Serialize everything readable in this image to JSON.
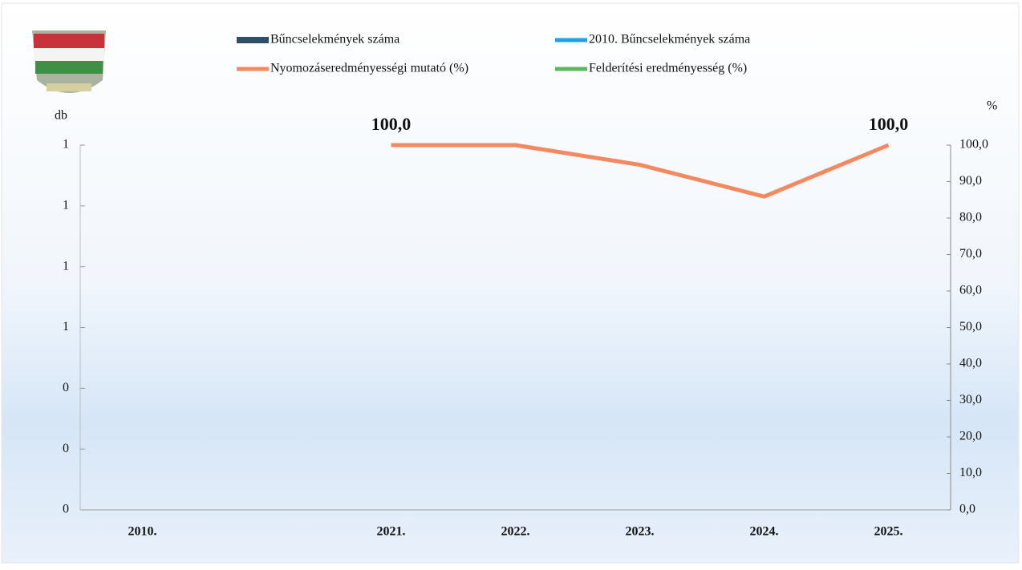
{
  "chart_data": {
    "type": "bar+line",
    "y_label": "db",
    "y2_label": "%",
    "categories": [
      "2010.",
      null,
      "2021.",
      "2022.",
      "2023.",
      "2024.",
      "2025."
    ],
    "ylim": [
      0,
      1.2
    ],
    "yticks": [
      0,
      {
        "value": 0.2,
        "label": "0"
      },
      {
        "value": 0.4,
        "label": "0"
      },
      {
        "value": 0.6,
        "label": "1"
      },
      {
        "value": 0.8,
        "label": "1"
      },
      1,
      {
        "value": 1.2,
        "label": "1"
      }
    ],
    "y2lim": [
      0,
      100
    ],
    "y2ticks": [
      {
        "value": 0,
        "label": "0,0"
      },
      {
        "value": 10,
        "label": "10,0"
      },
      {
        "value": 20,
        "label": "20,0"
      },
      {
        "value": 30,
        "label": "30,0"
      },
      {
        "value": 40,
        "label": "40,0"
      },
      {
        "value": 50,
        "label": "50,0"
      },
      {
        "value": 60,
        "label": "60,0"
      },
      {
        "value": 70,
        "label": "70,0"
      },
      {
        "value": 80,
        "label": "80,0"
      },
      {
        "value": 90,
        "label": "90,0"
      },
      {
        "value": 100,
        "label": "100,0"
      }
    ],
    "series": [
      {
        "name": "Bűncselekmények száma",
        "type": "bar",
        "color": "#2f4f6b",
        "values": [
          0,
          null,
          0,
          0,
          0,
          0,
          0
        ]
      },
      {
        "name": "2010. Bűncselekmények száma",
        "type": "line",
        "color": "#1ea0f0",
        "values": [
          null,
          null,
          null,
          null,
          null,
          null,
          null
        ]
      },
      {
        "name": "Nyomozáseredményességi mutató (%)",
        "type": "line",
        "axis": "y2",
        "color": "#f4895f",
        "values": [
          null,
          null,
          100,
          100,
          94.6,
          85.9,
          100
        ],
        "value_labels": [
          null,
          null,
          "100,0",
          null,
          null,
          null,
          "100,0"
        ]
      },
      {
        "name": "Felderítési eredményesség (%)",
        "type": "line",
        "axis": "y2",
        "color": "#5cb85c",
        "values": [
          null,
          null,
          null,
          null,
          null,
          null,
          null
        ]
      }
    ]
  }
}
